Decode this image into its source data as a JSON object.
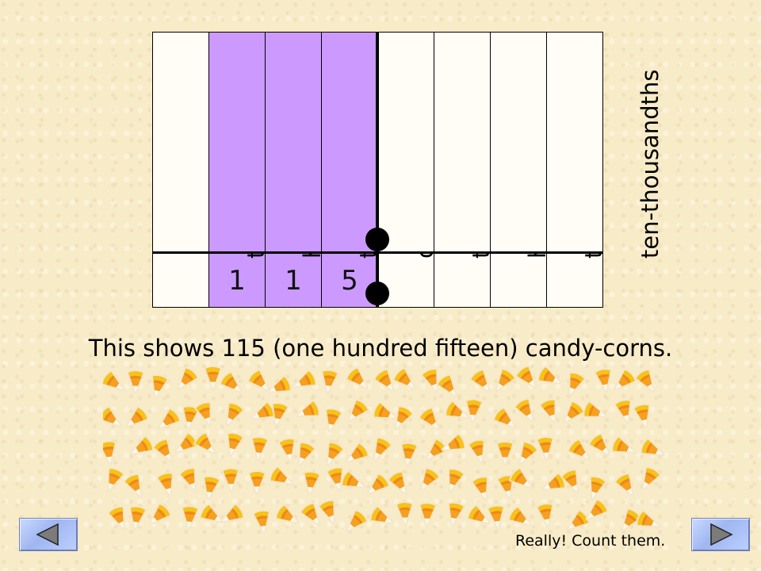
{
  "place_value_chart": {
    "columns": [
      {
        "label": "thousands",
        "value": "",
        "highlighted": false
      },
      {
        "label": "hundreds",
        "value": "1",
        "highlighted": true
      },
      {
        "label": "tens",
        "value": "1",
        "highlighted": true
      },
      {
        "label": "ones",
        "value": "5",
        "highlighted": true
      },
      {
        "label": "tenths",
        "value": "",
        "highlighted": false
      },
      {
        "label": "hundredths",
        "value": "",
        "highlighted": false
      },
      {
        "label": "thousandths",
        "value": "",
        "highlighted": false
      },
      {
        "label": "ten-thousandths",
        "value": "",
        "highlighted": false
      }
    ],
    "highlight_color": "#cc99ff"
  },
  "caption": "This shows 115 (one hundred fifteen) candy-corns.",
  "candy_count": 115,
  "footnote": "Really! Count them.",
  "nav": {
    "back_icon": "left-triangle-icon",
    "next_icon": "right-triangle-icon"
  }
}
